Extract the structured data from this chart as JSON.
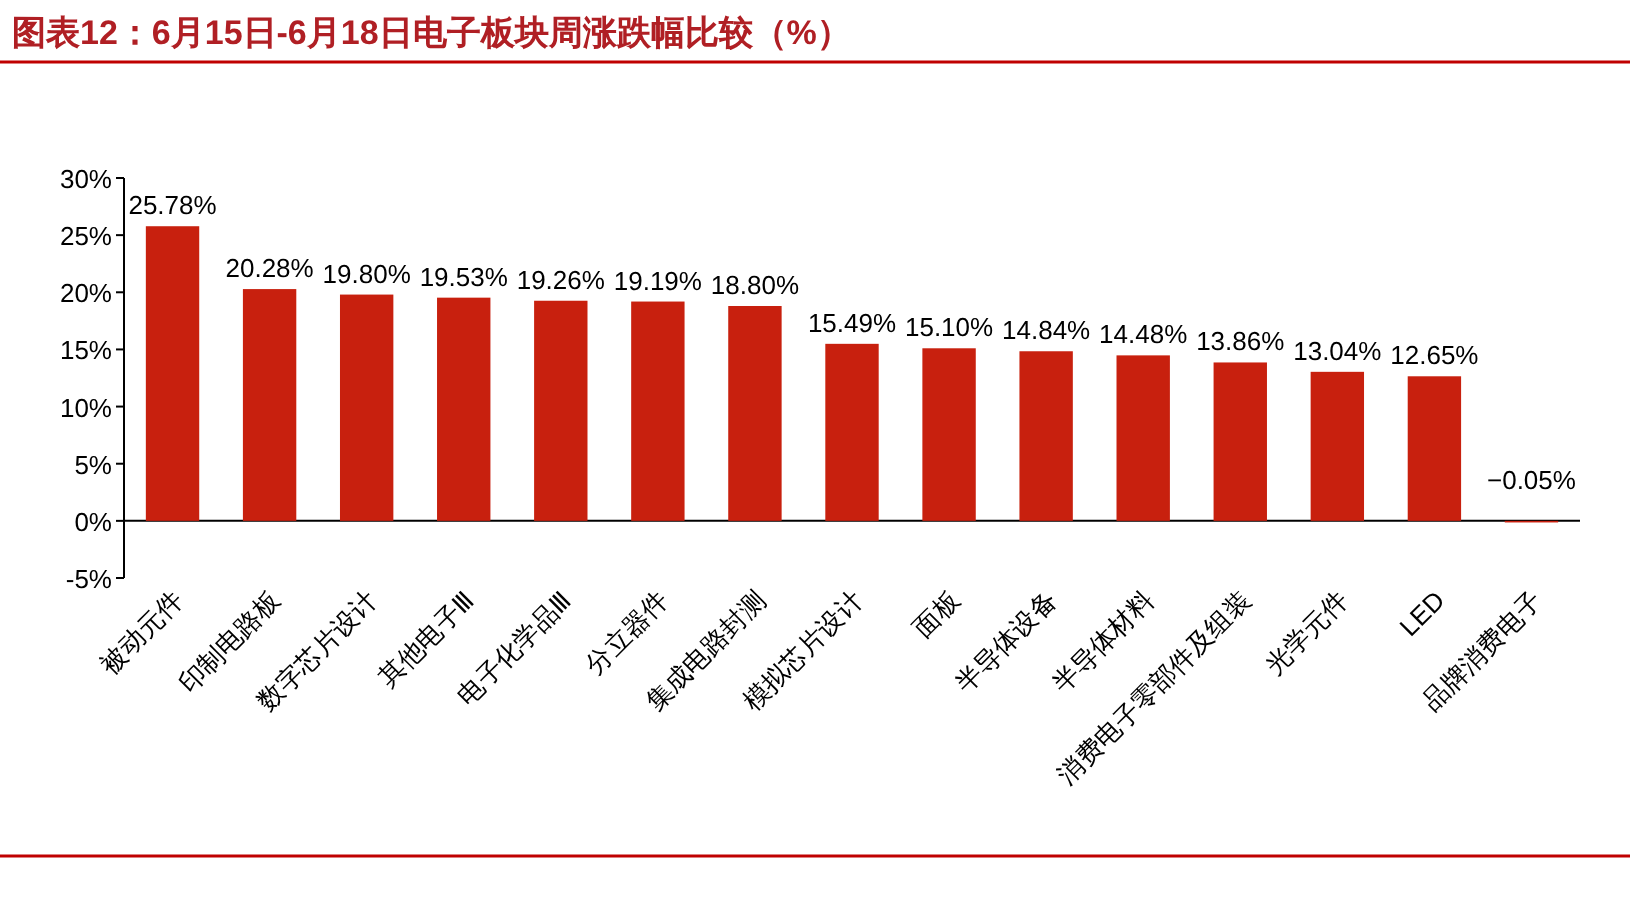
{
  "chart_data": {
    "type": "bar",
    "title": "图表12：6月15日-6月18日电子板块周涨跌幅比较（%）",
    "categories": [
      "被动元件",
      "印制电路板",
      "数字芯片设计",
      "其他电子Ⅲ",
      "电子化学品Ⅲ",
      "分立器件",
      "集成电路封测",
      "模拟芯片设计",
      "面板",
      "半导体设备",
      "半导体材料",
      "消费电子零部件及组装",
      "光学元件",
      "LED",
      "品牌消费电子"
    ],
    "values": [
      25.78,
      20.28,
      19.8,
      19.53,
      19.26,
      19.19,
      18.8,
      15.49,
      15.1,
      14.84,
      14.48,
      13.86,
      13.04,
      12.65,
      -0.05
    ],
    "value_labels": [
      "25.78%",
      "20.28%",
      "19.80%",
      "19.53%",
      "19.26%",
      "19.19%",
      "18.80%",
      "15.49%",
      "15.10%",
      "14.84%",
      "14.48%",
      "13.86%",
      "13.04%",
      "12.65%",
      "−0.05%"
    ],
    "color": "#c8200e",
    "ylim": [
      -5,
      30
    ],
    "yticks": [
      {
        "value": -5,
        "label": "-5%"
      },
      {
        "value": 0,
        "label": "0%"
      },
      {
        "value": 5,
        "label": "5%"
      },
      {
        "value": 10,
        "label": "10%"
      },
      {
        "value": 15,
        "label": "15%"
      },
      {
        "value": 20,
        "label": "20%"
      },
      {
        "value": 25,
        "label": "25%"
      },
      {
        "value": 30,
        "label": "30%"
      }
    ],
    "grid": false
  }
}
